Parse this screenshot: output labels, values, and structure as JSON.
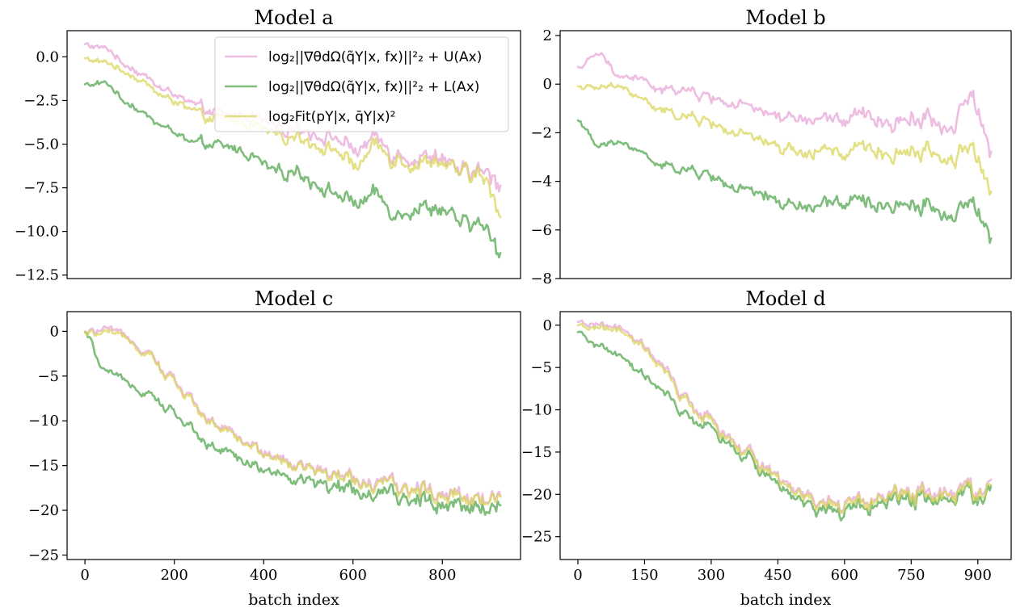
{
  "chart_data": [
    {
      "type": "line",
      "title": "Model a",
      "xlabel": "",
      "ylabel": "",
      "xlim": [
        -40,
        975
      ],
      "ylim": [
        -12.7,
        1.5
      ],
      "xticks": [],
      "yticks": [
        0.0,
        -2.5,
        -5.0,
        -7.5,
        -10.0,
        -12.5
      ],
      "ytick_labels": [
        "0.0",
        "−2.5",
        "−5.0",
        "−7.5",
        "−10.0",
        "−12.5"
      ],
      "legend": "top-right",
      "series_style": [
        {
          "color": "#e7a7d8",
          "label": "log₂||∇θdΩ(q̃Y|x, fx)||²₂ + U(Ax)"
        },
        {
          "color": "#5fad5c",
          "label": "log₂||∇θdΩ(q̃Y|x, fx)||²₂ + L(Ax)"
        },
        {
          "color": "#d9d65e",
          "label": "log₂Fit(pY|x, q̄Y|x)²"
        }
      ],
      "series": [
        {
          "values": [
            0.7,
            0.5,
            -0.5,
            -1.2,
            -2.0,
            -2.6,
            -3.2,
            -3.4,
            -3.3,
            -3.9,
            -4.0,
            -4.3,
            -4.6,
            -5.4,
            -4.9,
            -5.6,
            -5.8,
            -5.9,
            -6.5,
            -6.6,
            -7.3
          ]
        },
        {
          "values": [
            -1.6,
            -1.5,
            -2.6,
            -3.4,
            -4.1,
            -4.9,
            -5.1,
            -5.2,
            -5.6,
            -6.4,
            -6.5,
            -7.1,
            -7.8,
            -8.4,
            -8.1,
            -9.0,
            -8.6,
            -8.9,
            -9.4,
            -9.6,
            -11.2
          ]
        },
        {
          "values": [
            -0.1,
            -0.3,
            -0.9,
            -1.6,
            -2.4,
            -3.0,
            -3.6,
            -3.6,
            -3.8,
            -4.3,
            -4.5,
            -4.9,
            -5.3,
            -6.3,
            -5.3,
            -5.9,
            -6.1,
            -6.2,
            -6.6,
            -6.8,
            -8.9
          ]
        }
      ]
    },
    {
      "type": "line",
      "title": "Model b",
      "xlabel": "",
      "ylabel": "",
      "xlim": [
        -40,
        975
      ],
      "ylim": [
        -8.0,
        2.2
      ],
      "xticks": [],
      "yticks": [
        2,
        0,
        -2,
        -4,
        -6,
        -8
      ],
      "ytick_labels": [
        "2",
        "0",
        "−2",
        "−4",
        "−6",
        "−8"
      ],
      "series": [
        {
          "values": [
            0.7,
            1.2,
            0.3,
            0.2,
            -0.3,
            -0.2,
            -0.5,
            -0.7,
            -0.9,
            -1.2,
            -1.3,
            -1.5,
            -1.3,
            -1.6,
            -1.3,
            -1.7,
            -1.4,
            -1.5,
            -1.8,
            -0.4,
            -2.9
          ]
        },
        {
          "values": [
            -1.5,
            -2.6,
            -2.4,
            -2.8,
            -3.4,
            -3.5,
            -3.7,
            -4.0,
            -4.4,
            -4.6,
            -4.9,
            -5.1,
            -4.8,
            -5.0,
            -4.9,
            -5.1,
            -4.9,
            -5.1,
            -5.4,
            -4.8,
            -6.5
          ]
        },
        {
          "values": [
            -0.1,
            -0.2,
            -0.1,
            -0.6,
            -1.1,
            -1.3,
            -1.5,
            -1.8,
            -2.1,
            -2.4,
            -2.6,
            -2.9,
            -2.6,
            -3.0,
            -2.6,
            -3.0,
            -2.7,
            -2.8,
            -3.1,
            -2.5,
            -4.6
          ]
        }
      ]
    },
    {
      "type": "line",
      "title": "Model c",
      "xlabel": "batch index",
      "ylabel": "",
      "xlim": [
        -40,
        975
      ],
      "ylim": [
        -25.5,
        2.2
      ],
      "xticks": [
        0,
        200,
        400,
        600,
        800
      ],
      "xtick_labels": [
        "0",
        "200",
        "400",
        "600",
        "800"
      ],
      "yticks": [
        0,
        -5,
        -10,
        -15,
        -20,
        -25
      ],
      "ytick_labels": [
        "0",
        "−5",
        "−10",
        "−15",
        "−20",
        "−25"
      ],
      "series": [
        {
          "values": [
            -0.2,
            0.2,
            -0.6,
            -2.2,
            -4.8,
            -7.3,
            -9.8,
            -11.2,
            -12.6,
            -13.8,
            -14.8,
            -15.5,
            -16.1,
            -16.6,
            -17.0,
            -17.3,
            -17.6,
            -17.9,
            -18.1,
            -18.3,
            -18.5
          ]
        },
        {
          "values": [
            -0.3,
            -4.6,
            -5.6,
            -6.8,
            -8.6,
            -10.6,
            -12.6,
            -13.6,
            -14.8,
            -15.6,
            -16.5,
            -17.0,
            -17.5,
            -17.9,
            -18.3,
            -18.5,
            -18.8,
            -19.0,
            -19.2,
            -19.4,
            -19.6
          ]
        },
        {
          "values": [
            -0.3,
            -0.2,
            -0.8,
            -2.4,
            -5.0,
            -7.5,
            -10.0,
            -11.4,
            -12.8,
            -14.0,
            -15.0,
            -15.7,
            -16.3,
            -16.8,
            -17.2,
            -17.5,
            -17.8,
            -18.1,
            -18.3,
            -18.5,
            -18.7
          ]
        }
      ]
    },
    {
      "type": "line",
      "title": "Model d",
      "xlabel": "batch index",
      "ylabel": "",
      "xlim": [
        -40,
        975
      ],
      "ylim": [
        -27.7,
        1.6
      ],
      "xticks": [
        0,
        150,
        300,
        450,
        600,
        750,
        900
      ],
      "xtick_labels": [
        "0",
        "150",
        "300",
        "450",
        "600",
        "750",
        "900"
      ],
      "yticks": [
        0,
        -5,
        -10,
        -15,
        -20,
        -25
      ],
      "ytick_labels": [
        "0",
        "−5",
        "−10",
        "−15",
        "−20",
        "−25"
      ],
      "series": [
        {
          "values": [
            0.2,
            0.1,
            -0.5,
            -2.0,
            -4.8,
            -8.0,
            -10.6,
            -12.4,
            -14.4,
            -16.6,
            -18.6,
            -20.0,
            -20.9,
            -21.1,
            -20.4,
            -20.2,
            -19.6,
            -19.6,
            -19.3,
            -19.4,
            -19.2
          ]
        },
        {
          "values": [
            -1.0,
            -2.4,
            -3.8,
            -5.6,
            -7.8,
            -10.2,
            -11.8,
            -13.2,
            -15.2,
            -17.4,
            -19.6,
            -21.0,
            -21.8,
            -22.0,
            -21.2,
            -21.0,
            -20.4,
            -20.4,
            -20.1,
            -20.2,
            -20.0
          ]
        },
        {
          "values": [
            -0.2,
            -0.3,
            -0.8,
            -2.3,
            -5.1,
            -8.3,
            -10.9,
            -12.7,
            -14.7,
            -16.9,
            -18.9,
            -20.3,
            -21.2,
            -21.4,
            -20.7,
            -20.5,
            -19.9,
            -19.9,
            -19.6,
            -19.7,
            -19.5
          ]
        }
      ]
    }
  ]
}
